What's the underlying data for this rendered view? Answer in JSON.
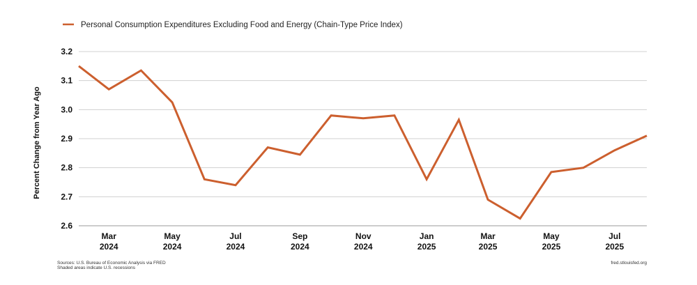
{
  "chart_data": {
    "type": "line",
    "title": "",
    "xlabel": "",
    "ylabel": "Percent Change from Year Ago",
    "ylim": [
      2.6,
      3.2
    ],
    "yticks": [
      "2.6",
      "2.7",
      "2.8",
      "2.9",
      "3.0",
      "3.1",
      "3.2"
    ],
    "x_tick_labels": [
      {
        "month": "Mar",
        "year": "2024",
        "date": "2024-03"
      },
      {
        "month": "May",
        "year": "2024",
        "date": "2024-05"
      },
      {
        "month": "Jul",
        "year": "2024",
        "date": "2024-07"
      },
      {
        "month": "Sep",
        "year": "2024",
        "date": "2024-09"
      },
      {
        "month": "Nov",
        "year": "2024",
        "date": "2024-11"
      },
      {
        "month": "Jan",
        "year": "2025",
        "date": "2025-01"
      },
      {
        "month": "Mar",
        "year": "2025",
        "date": "2025-03"
      },
      {
        "month": "May",
        "year": "2025",
        "date": "2025-05"
      },
      {
        "month": "Jul",
        "year": "2025",
        "date": "2025-07"
      }
    ],
    "grid": true,
    "legend_position": "top-left",
    "x": [
      "2024-02",
      "2024-03",
      "2024-04",
      "2024-05",
      "2024-06",
      "2024-07",
      "2024-08",
      "2024-09",
      "2024-10",
      "2024-11",
      "2024-12",
      "2025-01",
      "2025-02",
      "2025-03",
      "2025-04",
      "2025-05",
      "2025-06",
      "2025-07",
      "2025-08"
    ],
    "series": [
      {
        "name": "Personal Consumption Expenditures Excluding Food and Energy (Chain-Type Price Index)",
        "color": "#cc5f2e",
        "values": [
          3.15,
          3.07,
          3.135,
          3.025,
          2.76,
          2.74,
          2.87,
          2.845,
          2.98,
          2.97,
          2.98,
          2.76,
          2.965,
          2.69,
          2.625,
          2.785,
          2.8,
          2.86,
          2.91
        ]
      }
    ]
  },
  "footer": {
    "sources": "Sources: U.S. Bureau of Economic Analysis via FRED",
    "shading_note": "Shaded areas indicate U.S. recessions",
    "site": "fred.stlouisfed.org"
  }
}
